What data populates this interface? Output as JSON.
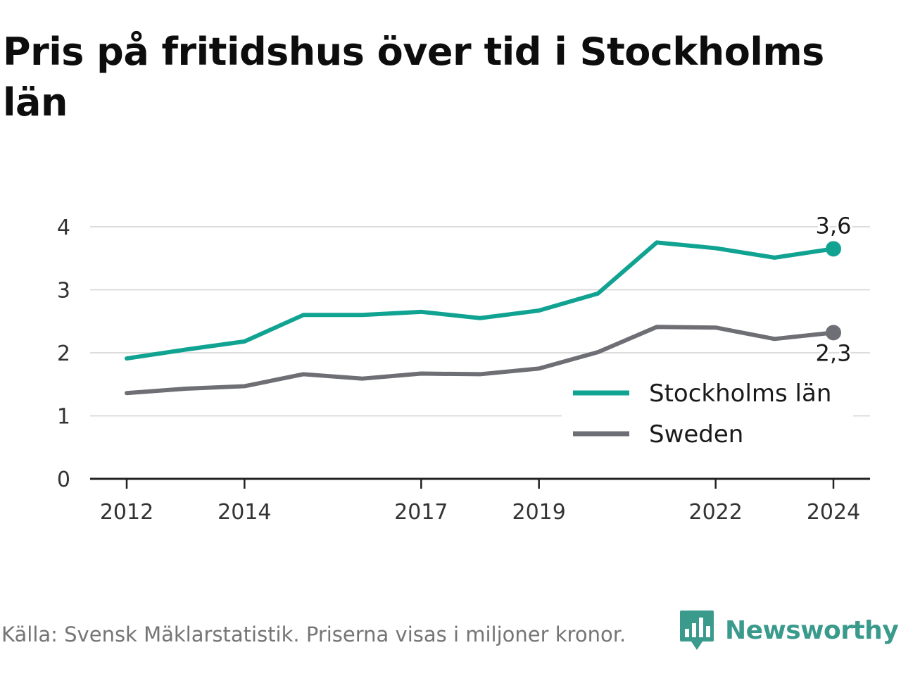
{
  "title": "Pris på fritidshus över tid i Stockholms län",
  "footer": {
    "source": "Källa: Svensk Mäklarstatistik. Priserna visas i miljoner kronor.",
    "brand": "Newsworthy"
  },
  "chart_data": {
    "type": "line",
    "title": "Pris på fritidshus över tid i Stockholms län",
    "xlabel": "",
    "ylabel": "",
    "x": [
      2012,
      2013,
      2014,
      2015,
      2016,
      2017,
      2018,
      2019,
      2020,
      2021,
      2022,
      2023,
      2024
    ],
    "x_ticks": [
      "2012",
      "2014",
      "2017",
      "2019",
      "2022",
      "2024"
    ],
    "y_ticks": [
      "0",
      "1",
      "2",
      "3",
      "4"
    ],
    "ylim": [
      0,
      4
    ],
    "grid": true,
    "legend_position": "bottom-right",
    "series": [
      {
        "name": "Stockholms län",
        "color": "#11a392",
        "values": [
          1.91,
          2.05,
          2.18,
          2.6,
          2.6,
          2.65,
          2.55,
          2.67,
          2.94,
          3.75,
          3.66,
          3.51,
          3.65
        ],
        "end_label": "3,6"
      },
      {
        "name": "Sweden",
        "color": "#6e6e75",
        "values": [
          1.36,
          1.43,
          1.47,
          1.66,
          1.59,
          1.67,
          1.66,
          1.75,
          2.01,
          2.41,
          2.4,
          2.22,
          2.32
        ],
        "end_label": "2,3"
      }
    ]
  }
}
